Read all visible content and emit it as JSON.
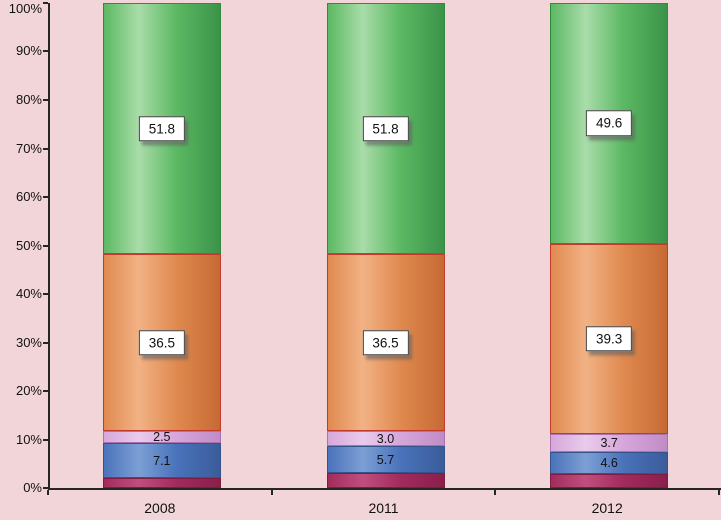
{
  "background_color": "#F2D5D9",
  "axis": {
    "color": "#262626",
    "y_ticks": [
      "0%",
      "10%",
      "20%",
      "30%",
      "40%",
      "50%",
      "60%",
      "70%",
      "80%",
      "90%",
      "100%"
    ],
    "x_labels": [
      "2008",
      "2011",
      "2012"
    ]
  },
  "chart_data": {
    "type": "bar",
    "subtype": "100-percent-stacked-column",
    "title": "",
    "xlabel": "",
    "ylabel": "",
    "ylim": [
      0,
      100
    ],
    "gridlines": false,
    "legend": "none",
    "background": "#F2D5D9",
    "categories": [
      "2008",
      "2011",
      "2012"
    ],
    "series": [
      {
        "name": "maroon",
        "values": [
          2.1,
          3.0,
          2.8
        ],
        "labeled": false,
        "boxed": false,
        "fill": {
          "light": "#C04F7D",
          "mid": "#A22C5C",
          "dark": "#8A1F4B"
        },
        "border": "#7E1C44"
      },
      {
        "name": "blue",
        "values": [
          7.1,
          5.7,
          4.6
        ],
        "labeled": true,
        "boxed": false,
        "fill": {
          "light": "#7C9FD4",
          "mid": "#4A73BB",
          "dark": "#3A5C9A"
        },
        "border": "#35548C"
      },
      {
        "name": "lavender",
        "values": [
          2.5,
          3.0,
          3.7
        ],
        "labeled": true,
        "boxed": false,
        "fill": {
          "light": "#E9CBEB",
          "mid": "#D7A7DB",
          "dark": "#C08CC5"
        },
        "border": "#A873AE"
      },
      {
        "name": "orange",
        "values": [
          36.5,
          36.5,
          39.3
        ],
        "labeled": true,
        "boxed": true,
        "fill": {
          "light": "#F2B285",
          "mid": "#E08A50",
          "dark": "#C66A34"
        },
        "border": "#C23B2A"
      },
      {
        "name": "green",
        "values": [
          51.8,
          51.8,
          49.6
        ],
        "labeled": true,
        "boxed": true,
        "fill": {
          "light": "#A9DCA9",
          "mid": "#5CB963",
          "dark": "#3B9349"
        },
        "border": "#2F8C3C"
      }
    ]
  }
}
